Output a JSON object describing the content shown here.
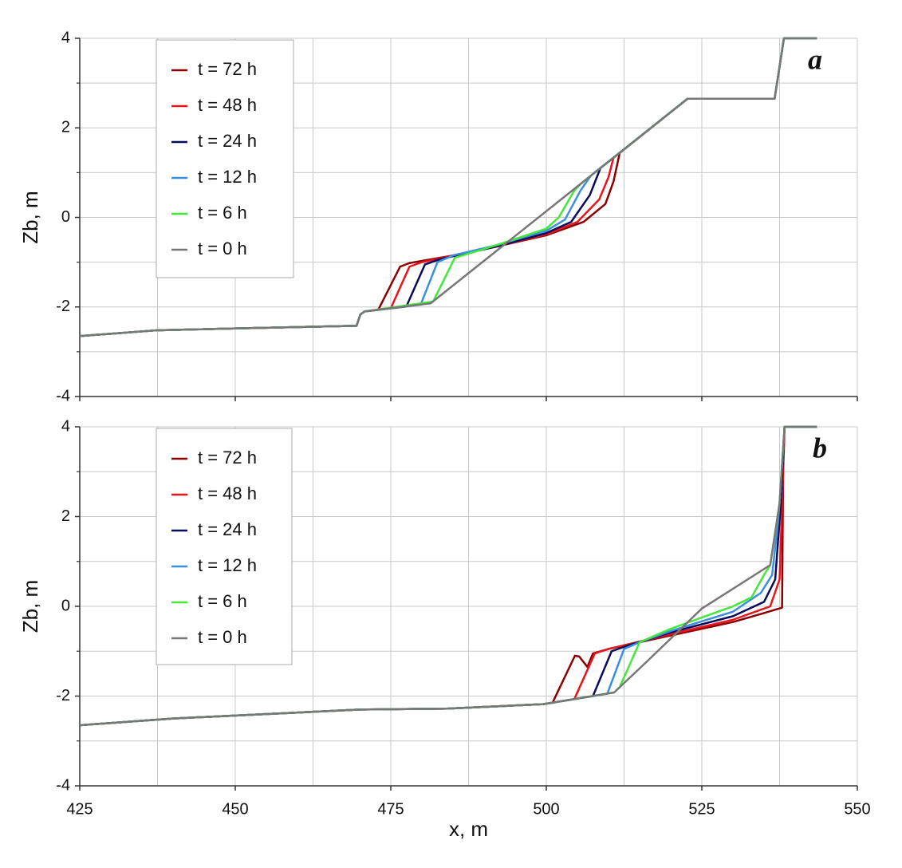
{
  "chart_data": [
    {
      "type": "line",
      "label": "a",
      "ylabel": "Zb, m",
      "xlim": [
        425,
        550
      ],
      "ylim": [
        -4,
        4
      ],
      "yticks": [
        -4,
        -2,
        0,
        2,
        4
      ],
      "grid": true,
      "minor_grid": true,
      "legend": "upper left",
      "series": [
        {
          "name": "t = 72 h",
          "color": "#8b0000",
          "x": [
            425,
            437.5,
            469.5,
            470.1,
            470.8,
            473.0,
            476.5,
            478,
            485,
            492,
            500,
            506,
            509.5,
            510.8,
            511.8,
            522.7,
            536.7,
            538.2,
            543.5
          ],
          "values": [
            -2.65,
            -2.52,
            -2.42,
            -2.17,
            -2.1,
            -2.06,
            -1.1,
            -1.02,
            -0.85,
            -0.65,
            -0.4,
            -0.1,
            0.3,
            0.8,
            1.44,
            2.65,
            2.65,
            4,
            4
          ]
        },
        {
          "name": "t = 48 h",
          "color": "#e8141b",
          "x": [
            425,
            437.5,
            469.5,
            470.1,
            470.8,
            475.0,
            478,
            480,
            486,
            492,
            500,
            505,
            508.5,
            510,
            510.8,
            522.7,
            536.7,
            538.2,
            543.5
          ],
          "values": [
            -2.65,
            -2.52,
            -2.42,
            -2.17,
            -2.1,
            -2.03,
            -1.1,
            -1.0,
            -0.82,
            -0.65,
            -0.38,
            -0.1,
            0.4,
            0.9,
            1.33,
            2.65,
            2.65,
            4,
            4
          ]
        },
        {
          "name": "t = 24 h",
          "color": "#0a0a5a",
          "x": [
            425,
            437.5,
            469.5,
            470.1,
            470.8,
            477.5,
            480.5,
            483,
            492,
            500,
            504,
            507,
            508.7,
            522.7,
            536.7,
            538.2,
            543.5
          ],
          "values": [
            -2.65,
            -2.52,
            -2.42,
            -2.17,
            -2.1,
            -1.99,
            -1.05,
            -0.93,
            -0.65,
            -0.35,
            -0.1,
            0.5,
            1.1,
            2.65,
            2.65,
            4,
            4
          ]
        },
        {
          "name": "t = 12 h",
          "color": "#3a8fe0",
          "x": [
            425,
            437.5,
            469.5,
            470.1,
            470.8,
            479.8,
            482.5,
            485,
            492,
            500,
            503,
            505.5,
            507.2,
            522.7,
            536.7,
            538.2,
            543.5
          ],
          "values": [
            -2.65,
            -2.52,
            -2.42,
            -2.17,
            -2.1,
            -1.95,
            -1.0,
            -0.85,
            -0.62,
            -0.3,
            -0.05,
            0.6,
            0.94,
            2.65,
            2.65,
            4,
            4
          ]
        },
        {
          "name": "t = 6 h",
          "color": "#44e83a",
          "x": [
            425,
            437.5,
            469.5,
            470.1,
            470.8,
            481.8,
            485.3,
            492,
            500,
            502,
            504.5,
            505.7,
            522.7,
            536.7,
            538.2,
            543.5
          ],
          "values": [
            -2.65,
            -2.52,
            -2.42,
            -2.17,
            -2.1,
            -1.88,
            -0.9,
            -0.62,
            -0.25,
            0.0,
            0.6,
            0.77,
            2.65,
            2.65,
            4,
            4
          ]
        },
        {
          "name": "t = 0 h",
          "color": "#777777",
          "x": [
            425,
            437.5,
            469.5,
            470.1,
            470.8,
            481.4,
            522.7,
            536.7,
            538.2,
            543.5
          ],
          "values": [
            -2.65,
            -2.52,
            -2.42,
            -2.17,
            -2.1,
            -1.92,
            2.65,
            2.65,
            4,
            4
          ]
        }
      ]
    },
    {
      "type": "line",
      "label": "b",
      "ylabel": "Zb, m",
      "xlabel": "x, m",
      "xlim": [
        425,
        550
      ],
      "ylim": [
        -4,
        4
      ],
      "xticks": [
        425,
        450,
        475,
        500,
        525,
        550
      ],
      "yticks": [
        -4,
        -2,
        0,
        2,
        4
      ],
      "grid": true,
      "minor_grid": true,
      "legend": "upper left",
      "series": [
        {
          "name": "t = 72 h",
          "color": "#8b0000",
          "x": [
            425,
            440,
            470,
            484,
            499.5,
            501.0,
            504.6,
            505.3,
            506.6,
            507.5,
            510,
            520,
            530,
            535,
            537.9,
            538.1,
            538.3,
            543.5
          ],
          "values": [
            -2.65,
            -2.5,
            -2.3,
            -2.28,
            -2.18,
            -2.15,
            -1.1,
            -1.12,
            -1.35,
            -1.05,
            -0.95,
            -0.65,
            -0.35,
            -0.15,
            -0.03,
            3.5,
            4,
            4
          ]
        },
        {
          "name": "t = 48 h",
          "color": "#e8141b",
          "x": [
            425,
            440,
            470,
            484,
            499.5,
            504.5,
            507.8,
            510,
            520,
            530,
            536,
            537.5,
            538.2,
            538.3,
            543.5
          ],
          "values": [
            -2.65,
            -2.5,
            -2.3,
            -2.28,
            -2.18,
            -2.07,
            -1.05,
            -0.95,
            -0.62,
            -0.3,
            0.0,
            0.6,
            3.5,
            4,
            4
          ]
        },
        {
          "name": "t = 24 h",
          "color": "#0a0a5a",
          "x": [
            425,
            440,
            470,
            484,
            499.5,
            507.5,
            510.5,
            513,
            520,
            530,
            535,
            536.8,
            537.7,
            538.3,
            543.5
          ],
          "values": [
            -2.65,
            -2.5,
            -2.3,
            -2.28,
            -2.18,
            -2.0,
            -1.0,
            -0.88,
            -0.58,
            -0.22,
            0.1,
            0.6,
            2.3,
            4,
            4
          ]
        },
        {
          "name": "t = 12 h",
          "color": "#3a8fe0",
          "x": [
            425,
            440,
            470,
            484,
            499.5,
            509.8,
            512.5,
            515,
            520,
            530,
            534.5,
            536.3,
            537.2,
            537.5,
            538.3,
            543.5
          ],
          "values": [
            -2.65,
            -2.5,
            -2.3,
            -2.28,
            -2.18,
            -1.95,
            -0.95,
            -0.8,
            -0.55,
            -0.12,
            0.3,
            0.7,
            1.8,
            2.3,
            4,
            4
          ]
        },
        {
          "name": "t = 6 h",
          "color": "#44e83a",
          "x": [
            425,
            440,
            470,
            484,
            499.5,
            510.9,
            511.8,
            515,
            520,
            530,
            533,
            535,
            536,
            537.5,
            538.3,
            543.5
          ],
          "values": [
            -2.65,
            -2.5,
            -2.3,
            -2.28,
            -2.18,
            -1.92,
            -1.8,
            -0.8,
            -0.5,
            0.0,
            0.2,
            0.7,
            0.92,
            2.3,
            4,
            4
          ]
        },
        {
          "name": "t = 0 h",
          "color": "#777777",
          "x": [
            425,
            440,
            470,
            484,
            499.5,
            510.9,
            516.4,
            525,
            536,
            537.5,
            538.3,
            543.5
          ],
          "values": [
            -2.65,
            -2.5,
            -2.3,
            -2.28,
            -2.18,
            -1.92,
            -1.2,
            -0.05,
            0.92,
            2.3,
            4,
            4
          ]
        }
      ]
    }
  ]
}
